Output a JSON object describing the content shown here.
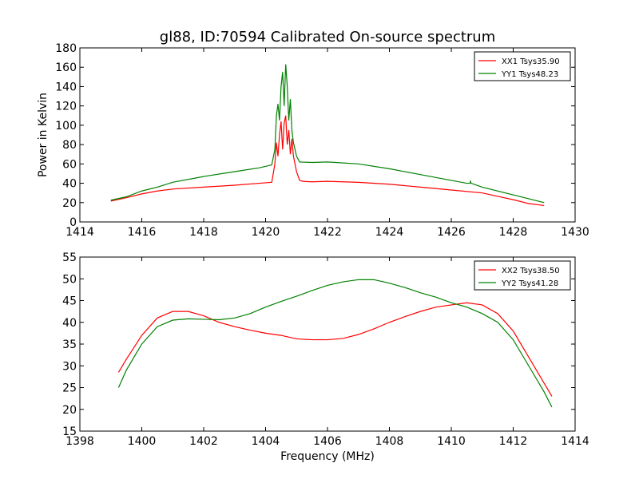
{
  "chart_data": [
    {
      "type": "line",
      "title": "gl88, ID:70594 Calibrated On-source spectrum",
      "xlabel": "",
      "ylabel": "Power in Kelvin",
      "xlim": [
        1414,
        1430
      ],
      "ylim": [
        0,
        180
      ],
      "xticks": [
        1414,
        1416,
        1418,
        1420,
        1422,
        1424,
        1426,
        1428,
        1430
      ],
      "yticks": [
        0,
        20,
        40,
        60,
        80,
        100,
        120,
        140,
        160,
        180
      ],
      "legend_position": "top-right",
      "grid": false,
      "series": [
        {
          "name": "XX1 Tsys35.90",
          "color": "#ff0000",
          "points": [
            [
              1415.0,
              21.5
            ],
            [
              1415.5,
              25
            ],
            [
              1416,
              29
            ],
            [
              1416.5,
              32
            ],
            [
              1417,
              34
            ],
            [
              1418,
              36
            ],
            [
              1419,
              38
            ],
            [
              1419.8,
              40
            ],
            [
              1420.2,
              41
            ],
            [
              1420.3,
              60
            ],
            [
              1420.35,
              82
            ],
            [
              1420.4,
              68
            ],
            [
              1420.45,
              90
            ],
            [
              1420.5,
              104
            ],
            [
              1420.55,
              75
            ],
            [
              1420.6,
              102
            ],
            [
              1420.65,
              110
            ],
            [
              1420.7,
              80
            ],
            [
              1420.75,
              95
            ],
            [
              1420.8,
              70
            ],
            [
              1420.85,
              86
            ],
            [
              1420.9,
              68
            ],
            [
              1421.0,
              52
            ],
            [
              1421.1,
              43
            ],
            [
              1421.2,
              42
            ],
            [
              1421.5,
              41.5
            ],
            [
              1422,
              42
            ],
            [
              1423,
              41
            ],
            [
              1424,
              39
            ],
            [
              1425,
              36
            ],
            [
              1426,
              33
            ],
            [
              1427,
              30
            ],
            [
              1428,
              23
            ],
            [
              1428.5,
              19
            ],
            [
              1429,
              17
            ]
          ]
        },
        {
          "name": "YY1 Tsys48.23",
          "color": "#008000",
          "points": [
            [
              1415.0,
              22.5
            ],
            [
              1415.5,
              26
            ],
            [
              1416,
              32
            ],
            [
              1416.5,
              36
            ],
            [
              1417,
              41
            ],
            [
              1418,
              47
            ],
            [
              1419,
              52
            ],
            [
              1419.8,
              56
            ],
            [
              1420.2,
              59
            ],
            [
              1420.3,
              75
            ],
            [
              1420.35,
              110
            ],
            [
              1420.4,
              122
            ],
            [
              1420.45,
              105
            ],
            [
              1420.5,
              140
            ],
            [
              1420.55,
              155
            ],
            [
              1420.6,
              120
            ],
            [
              1420.65,
              163
            ],
            [
              1420.7,
              140
            ],
            [
              1420.75,
              105
            ],
            [
              1420.8,
              127
            ],
            [
              1420.85,
              95
            ],
            [
              1420.9,
              82
            ],
            [
              1421.0,
              68
            ],
            [
              1421.1,
              62
            ],
            [
              1421.5,
              61.5
            ],
            [
              1422,
              62
            ],
            [
              1423,
              60
            ],
            [
              1424,
              55
            ],
            [
              1425,
              49
            ],
            [
              1426,
              43
            ],
            [
              1426.5,
              40
            ],
            [
              1426.6,
              40
            ],
            [
              1426.62,
              42
            ],
            [
              1426.64,
              40
            ],
            [
              1427,
              36
            ],
            [
              1428,
              28
            ],
            [
              1428.5,
              24
            ],
            [
              1429,
              20
            ]
          ]
        }
      ]
    },
    {
      "type": "line",
      "title": "",
      "xlabel": "Frequency (MHz)",
      "ylabel": "",
      "xlim": [
        1398,
        1414
      ],
      "ylim": [
        15,
        55
      ],
      "xticks": [
        1398,
        1400,
        1402,
        1404,
        1406,
        1408,
        1410,
        1412,
        1414
      ],
      "yticks": [
        15,
        20,
        25,
        30,
        35,
        40,
        45,
        50,
        55
      ],
      "legend_position": "top-right",
      "grid": false,
      "series": [
        {
          "name": "XX2 Tsys38.50",
          "color": "#ff0000",
          "points": [
            [
              1399.25,
              28.5
            ],
            [
              1399.5,
              31.5
            ],
            [
              1400,
              37
            ],
            [
              1400.5,
              41
            ],
            [
              1401,
              42.5
            ],
            [
              1401.5,
              42.5
            ],
            [
              1402,
              41.5
            ],
            [
              1402.5,
              40
            ],
            [
              1403,
              39
            ],
            [
              1403.5,
              38.2
            ],
            [
              1404,
              37.5
            ],
            [
              1404.5,
              37
            ],
            [
              1405,
              36.2
            ],
            [
              1405.5,
              36
            ],
            [
              1406,
              36
            ],
            [
              1406.5,
              36.3
            ],
            [
              1407,
              37.2
            ],
            [
              1407.5,
              38.5
            ],
            [
              1408,
              40
            ],
            [
              1408.5,
              41.3
            ],
            [
              1409,
              42.5
            ],
            [
              1409.5,
              43.5
            ],
            [
              1410,
              44
            ],
            [
              1410.5,
              44.5
            ],
            [
              1411,
              44
            ],
            [
              1411.5,
              42
            ],
            [
              1412,
              38
            ],
            [
              1412.5,
              32
            ],
            [
              1413,
              26
            ],
            [
              1413.25,
              23
            ]
          ]
        },
        {
          "name": "YY2 Tsys41.28",
          "color": "#008000",
          "points": [
            [
              1399.25,
              25
            ],
            [
              1399.5,
              29
            ],
            [
              1400,
              35
            ],
            [
              1400.5,
              39
            ],
            [
              1401,
              40.5
            ],
            [
              1401.5,
              40.8
            ],
            [
              1402,
              40.7
            ],
            [
              1402.5,
              40.6
            ],
            [
              1403,
              41
            ],
            [
              1403.5,
              42
            ],
            [
              1404,
              43.5
            ],
            [
              1404.5,
              44.8
            ],
            [
              1405,
              46
            ],
            [
              1405.5,
              47.3
            ],
            [
              1406,
              48.5
            ],
            [
              1406.5,
              49.3
            ],
            [
              1407,
              49.8
            ],
            [
              1407.5,
              49.8
            ],
            [
              1408,
              49
            ],
            [
              1408.5,
              48
            ],
            [
              1409,
              46.8
            ],
            [
              1409.5,
              45.8
            ],
            [
              1410,
              44.5
            ],
            [
              1410.5,
              43.5
            ],
            [
              1411,
              42
            ],
            [
              1411.5,
              40
            ],
            [
              1412,
              36
            ],
            [
              1412.5,
              30
            ],
            [
              1413,
              24
            ],
            [
              1413.25,
              20.5
            ]
          ]
        }
      ]
    }
  ]
}
